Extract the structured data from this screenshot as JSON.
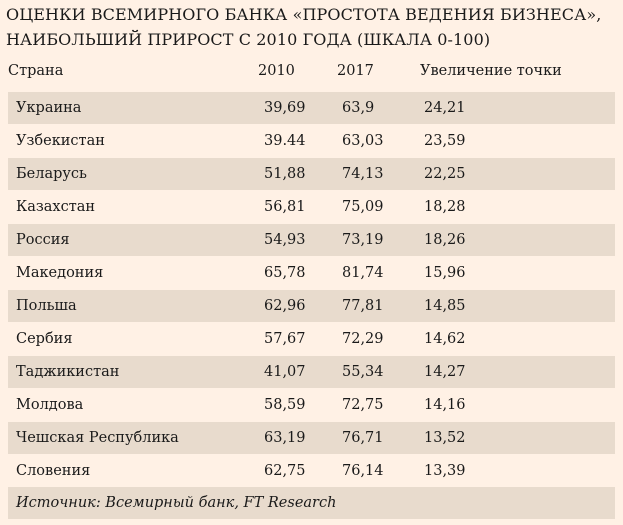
{
  "title": "ОЦЕНКИ ВСЕМИРНОГО БАНКА «ПРОСТОТА ВЕДЕНИЯ БИЗНЕСА», НАИБОЛЬШИЙ ПРИРОСТ С 2010 ГОДА (ШКАЛА 0-100)",
  "table": {
    "headers": {
      "country": "Страна",
      "v2010": "2010",
      "v2017": "2017",
      "increase": "Увеличение точки"
    },
    "rows": [
      {
        "country": "Украина",
        "v2010": "39,69",
        "v2017": "63,9",
        "increase": "24,21"
      },
      {
        "country": "Узбекистан",
        "v2010": "39.44",
        "v2017": "63,03",
        "increase": "23,59"
      },
      {
        "country": "Беларусь",
        "v2010": "51,88",
        "v2017": "74,13",
        "increase": "22,25"
      },
      {
        "country": "Казахстан",
        "v2010": "56,81",
        "v2017": "75,09",
        "increase": "18,28"
      },
      {
        "country": "Россия",
        "v2010": "54,93",
        "v2017": "73,19",
        "increase": "18,26"
      },
      {
        "country": "Македония",
        "v2010": "65,78",
        "v2017": "81,74",
        "increase": "15,96"
      },
      {
        "country": "Польша",
        "v2010": "62,96",
        "v2017": "77,81",
        "increase": "14,85"
      },
      {
        "country": "Сербия",
        "v2010": "57,67",
        "v2017": "72,29",
        "increase": "14,62"
      },
      {
        "country": "Таджикистан",
        "v2010": "41,07",
        "v2017": "55,34",
        "increase": "14,27"
      },
      {
        "country": "Молдова",
        "v2010": "58,59",
        "v2017": "72,75",
        "increase": "14,16"
      },
      {
        "country": "Чешская Республика",
        "v2010": "63,19",
        "v2017": "76,71",
        "increase": "13,52"
      },
      {
        "country": "Словения",
        "v2010": "62,75",
        "v2017": "76,14",
        "increase": "13,39"
      }
    ]
  },
  "source": "Источник: Всемирный банк, FT Research",
  "colors": {
    "background": "#fff1e5",
    "row_shade": "#e8dbcd",
    "text": "#1a1a1a"
  }
}
